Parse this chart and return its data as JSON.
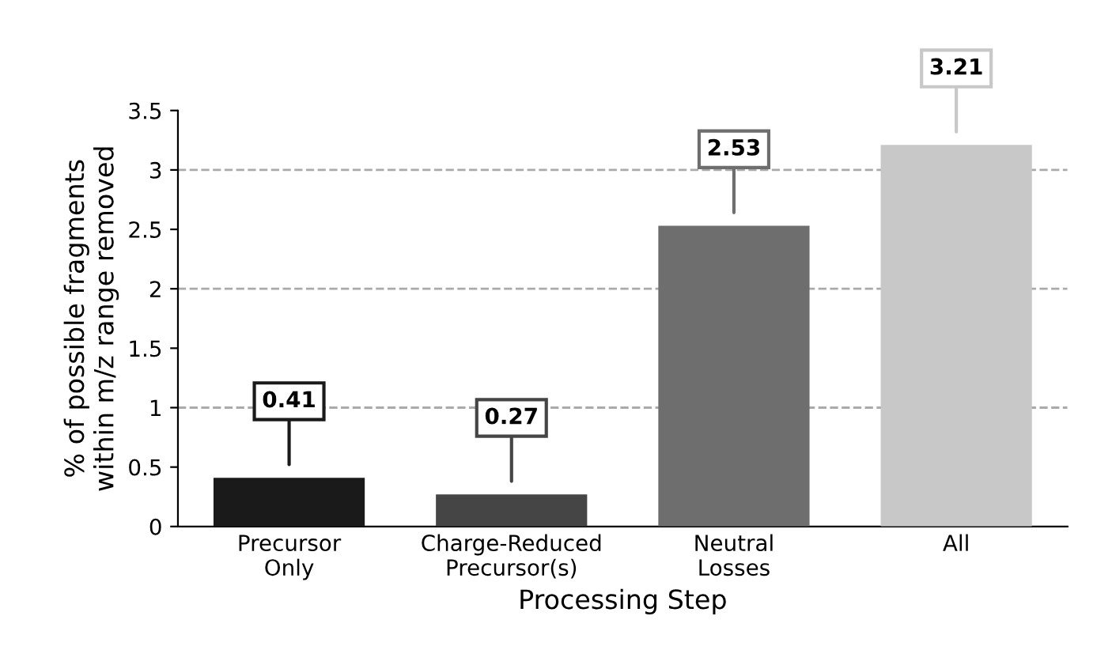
{
  "chart_data": {
    "type": "bar",
    "categories": [
      "Precursor\nOnly",
      "Charge-Reduced\nPrecursor(s)",
      "Neutral\nLosses",
      "All"
    ],
    "values": [
      0.41,
      0.27,
      2.53,
      3.21
    ],
    "colors": [
      "#1a1a1a",
      "#454545",
      "#6e6e6e",
      "#c8c8c8"
    ],
    "xlabel": "Processing Step",
    "ylabel": "% of possible fragments\nwithin m/z range removed",
    "ylim": [
      0,
      3.5
    ],
    "yticks": [
      0,
      0.5,
      1,
      1.5,
      2,
      2.5,
      3,
      3.5
    ],
    "ref_lines": [
      {
        "axis": "y",
        "value": 1,
        "color": "#aaaaaa",
        "line_style": "dashed"
      },
      {
        "axis": "y",
        "value": 2,
        "color": "#aaaaaa",
        "line_style": "dashed"
      },
      {
        "axis": "y",
        "value": 3,
        "color": "#aaaaaa",
        "line_style": "dashed"
      }
    ],
    "data_labels": true,
    "grid": false,
    "legend": false
  }
}
